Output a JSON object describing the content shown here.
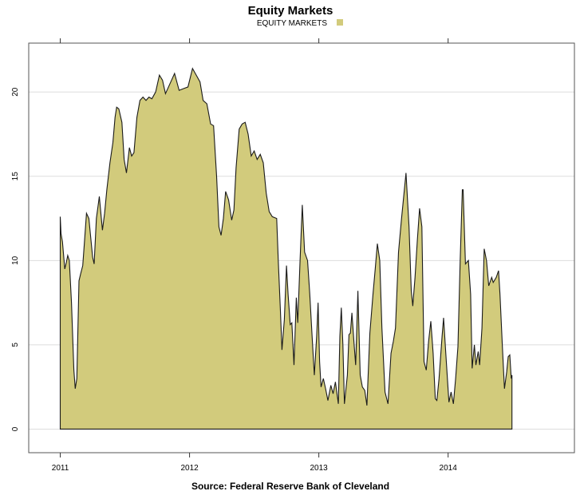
{
  "chart_data": {
    "type": "area",
    "title": "Equity Markets",
    "caption": "Source: Federal Reserve Bank of Cleveland",
    "xlabel": "",
    "ylabel": "",
    "legend": {
      "placement": "top",
      "entries": [
        {
          "name": "EQUITY MARKETS",
          "color": "#d2cb7c"
        }
      ]
    },
    "xlim": [
      2010.756,
      2014.977
    ],
    "ylim": [
      -1.4,
      22.9
    ],
    "x_ticks": [
      2011,
      2012,
      2013,
      2014
    ],
    "x_tick_labels": [
      "2011",
      "2012",
      "2013",
      "2014"
    ],
    "y_ticks": [
      0,
      5,
      10,
      15,
      20
    ],
    "y_tick_labels": [
      "0",
      "5",
      "10",
      "15",
      "20"
    ],
    "grid": {
      "horizontal": true,
      "vertical": false,
      "color": "#dddddd"
    },
    "colors": {
      "fill": "#d2cb7c",
      "line": "#1a1a1a"
    },
    "series": [
      {
        "name": "EQUITY MARKETS",
        "x": [
          2011.0,
          2011.006,
          2011.017,
          2011.035,
          2011.047,
          2011.058,
          2011.07,
          2011.087,
          2011.105,
          2011.116,
          2011.128,
          2011.145,
          2011.157,
          2011.174,
          2011.186,
          2011.203,
          2011.221,
          2011.25,
          2011.262,
          2011.279,
          2011.302,
          2011.326,
          2011.343,
          2011.36,
          2011.384,
          2011.407,
          2011.424,
          2011.436,
          2011.453,
          2011.477,
          2011.494,
          2011.512,
          2011.535,
          2011.552,
          2011.57,
          2011.593,
          2011.616,
          2011.64,
          2011.663,
          2011.686,
          2011.709,
          2011.738,
          2011.767,
          2011.791,
          2011.814,
          2011.849,
          2011.884,
          2011.919,
          2011.953,
          2011.988,
          2012.023,
          2012.052,
          2012.081,
          2012.105,
          2012.134,
          2012.163,
          2012.186,
          2012.209,
          2012.227,
          2012.244,
          2012.262,
          2012.279,
          2012.302,
          2012.326,
          2012.343,
          2012.36,
          2012.384,
          2012.407,
          2012.43,
          2012.453,
          2012.477,
          2012.5,
          2012.523,
          2012.547,
          2012.57,
          2012.593,
          2012.616,
          2012.64,
          2012.674,
          2012.686,
          2012.703,
          2012.715,
          2012.733,
          2012.75,
          2012.762,
          2012.779,
          2012.791,
          2012.808,
          2012.826,
          2012.837,
          2012.855,
          2012.872,
          2012.89,
          2012.913,
          2012.93,
          2012.948,
          2012.965,
          2012.983,
          2012.994,
          2013.006,
          2013.017,
          2013.035,
          2013.052,
          2013.07,
          2013.093,
          2013.11,
          2013.128,
          2013.151,
          2013.163,
          2013.174,
          2013.186,
          2013.198,
          2013.221,
          2013.233,
          2013.244,
          2013.256,
          2013.273,
          2013.285,
          2013.302,
          2013.32,
          2013.337,
          2013.355,
          2013.372,
          2013.395,
          2013.419,
          2013.436,
          2013.453,
          2013.471,
          2013.488,
          2013.512,
          2013.535,
          2013.558,
          2013.576,
          2013.593,
          2013.616,
          2013.64,
          2013.674,
          2013.698,
          2013.715,
          2013.727,
          2013.744,
          2013.762,
          2013.779,
          2013.797,
          2013.814,
          2013.831,
          2013.849,
          2013.866,
          2013.884,
          2013.901,
          2013.913,
          2013.93,
          2013.953,
          2013.965,
          2013.983,
          2014.006,
          2014.023,
          2014.041,
          2014.058,
          2014.076,
          2014.093,
          2014.11,
          2014.116,
          2014.134,
          2014.157,
          2014.174,
          2014.186,
          2014.203,
          2014.215,
          2014.233,
          2014.244,
          2014.262,
          2014.279,
          2014.297,
          2014.314,
          2014.337,
          2014.349,
          2014.372,
          2014.39,
          2014.401,
          2014.419,
          2014.436,
          2014.453,
          2014.465,
          2014.477,
          2014.488,
          2014.494
        ],
        "values": [
          12.6,
          11.6,
          11.1,
          9.5,
          9.9,
          10.3,
          10.0,
          7.5,
          3.5,
          2.4,
          3.0,
          8.8,
          9.2,
          9.7,
          11.0,
          12.8,
          12.5,
          10.2,
          9.8,
          12.5,
          13.8,
          11.8,
          12.8,
          14.2,
          15.8,
          17.0,
          18.5,
          19.1,
          19.0,
          18.2,
          16.0,
          15.2,
          16.7,
          16.2,
          16.4,
          18.5,
          19.5,
          19.7,
          19.5,
          19.7,
          19.6,
          20.0,
          21.0,
          20.7,
          19.9,
          20.5,
          21.1,
          20.1,
          20.2,
          20.3,
          21.4,
          21.0,
          20.6,
          19.5,
          19.3,
          18.1,
          18.0,
          15.0,
          12.0,
          11.5,
          12.5,
          14.1,
          13.6,
          12.4,
          13.0,
          15.5,
          17.8,
          18.1,
          18.2,
          17.5,
          16.2,
          16.5,
          16.0,
          16.3,
          15.8,
          14.0,
          12.9,
          12.6,
          12.5,
          10.0,
          7.0,
          4.7,
          6.5,
          9.7,
          8.0,
          6.2,
          6.3,
          3.8,
          7.8,
          6.3,
          10.0,
          13.3,
          10.5,
          10.0,
          8.0,
          5.5,
          3.2,
          5.5,
          7.5,
          4.0,
          2.5,
          3.0,
          2.4,
          1.7,
          2.6,
          2.1,
          2.8,
          1.5,
          5.5,
          7.2,
          5.0,
          1.5,
          3.2,
          5.6,
          5.7,
          6.9,
          5.0,
          3.8,
          8.2,
          3.2,
          2.5,
          2.3,
          1.4,
          5.7,
          8.0,
          9.5,
          11.0,
          10.0,
          6.0,
          2.2,
          1.5,
          4.5,
          5.2,
          6.0,
          10.5,
          12.5,
          15.2,
          12.0,
          8.2,
          7.3,
          9.0,
          11.2,
          13.1,
          12.0,
          4.0,
          3.5,
          5.2,
          6.4,
          4.5,
          1.8,
          1.7,
          3.0,
          5.5,
          6.6,
          4.4,
          1.6,
          2.2,
          1.5,
          3.0,
          4.9,
          10.0,
          14.2,
          14.2,
          9.8,
          10.0,
          8.0,
          3.6,
          5.0,
          3.8,
          4.6,
          3.8,
          6.0,
          10.7,
          10.0,
          8.5,
          9.0,
          8.7,
          9.0,
          9.4,
          8.0,
          5.0,
          2.4,
          3.4,
          4.3,
          4.4,
          3.0,
          3.2
        ]
      }
    ]
  }
}
